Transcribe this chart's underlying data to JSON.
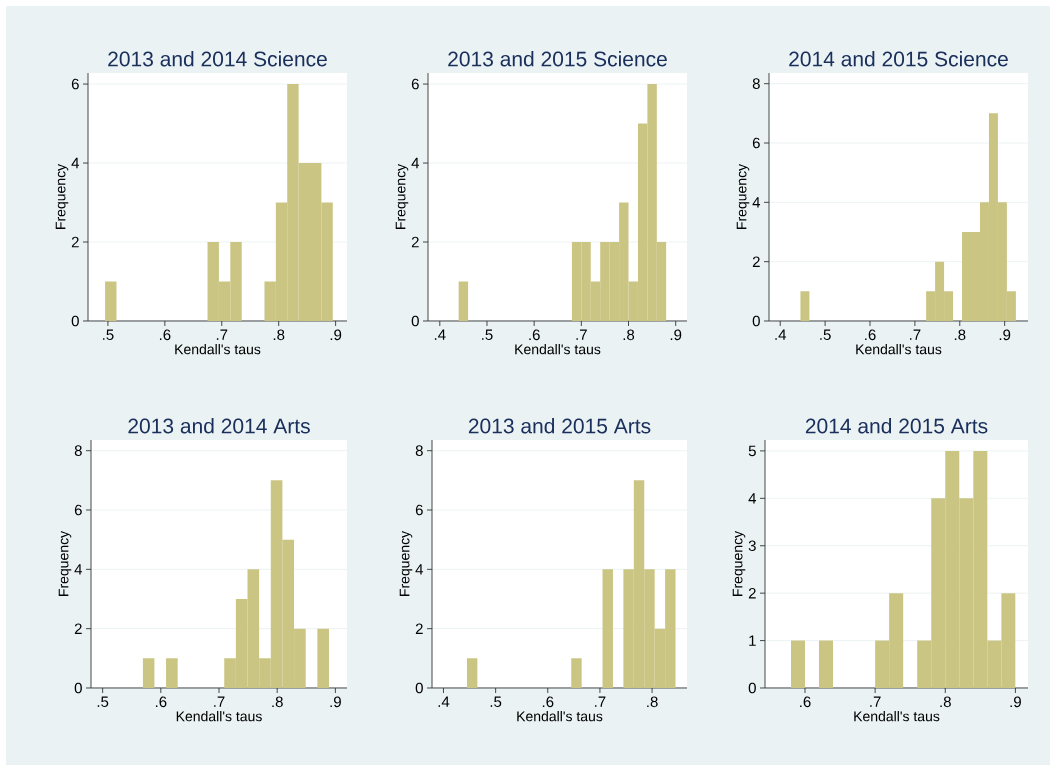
{
  "chart_data": [
    {
      "type": "histogram",
      "title": "2013 and 2014 Science",
      "xlabel": "Kendall's taus",
      "ylabel": "Frequency",
      "color": "#cbc583",
      "grid": "y",
      "bins": [
        0.495,
        0.515,
        0.535,
        0.555,
        0.575,
        0.595,
        0.615,
        0.635,
        0.655,
        0.675,
        0.695,
        0.715,
        0.735,
        0.755,
        0.775,
        0.795,
        0.815,
        0.835,
        0.855,
        0.875,
        0.895
      ],
      "values": [
        1,
        0,
        0,
        0,
        0,
        0,
        0,
        0,
        0,
        2,
        1,
        2,
        0,
        0,
        1,
        3,
        6,
        4,
        4,
        3
      ],
      "xlim": [
        0.465,
        0.92
      ],
      "ylim": [
        0,
        6.28
      ],
      "xticks": [
        {
          "value": 0.5,
          "label": ".5"
        },
        {
          "value": 0.6,
          "label": ".6"
        },
        {
          "value": 0.7,
          "label": ".7"
        },
        {
          "value": 0.8,
          "label": ".8"
        },
        {
          "value": 0.9,
          "label": ".9"
        }
      ],
      "yticks": [
        0,
        2,
        4,
        6
      ]
    },
    {
      "type": "histogram",
      "title": "2013 and 2015 Science",
      "xlabel": "Kendall's taus",
      "ylabel": "Frequency",
      "color": "#cbc583",
      "grid": "y",
      "bins": [
        0.44,
        0.46,
        0.48,
        0.5,
        0.52,
        0.54,
        0.56,
        0.58,
        0.6,
        0.62,
        0.64,
        0.66,
        0.68,
        0.7,
        0.72,
        0.74,
        0.76,
        0.78,
        0.8,
        0.82,
        0.84,
        0.86,
        0.88
      ],
      "values": [
        1,
        0,
        0,
        0,
        0,
        0,
        0,
        0,
        0,
        0,
        0,
        0,
        2,
        2,
        1,
        2,
        2,
        3,
        1,
        5,
        6,
        2
      ],
      "xlim": [
        0.375,
        0.924
      ],
      "ylim": [
        0,
        6.28
      ],
      "xticks": [
        {
          "value": 0.4,
          "label": ".4"
        },
        {
          "value": 0.5,
          "label": ".5"
        },
        {
          "value": 0.6,
          "label": ".6"
        },
        {
          "value": 0.7,
          "label": ".7"
        },
        {
          "value": 0.8,
          "label": ".8"
        },
        {
          "value": 0.9,
          "label": ".9"
        }
      ],
      "yticks": [
        0,
        2,
        4,
        6
      ]
    },
    {
      "type": "histogram",
      "title": "2014 and 2015 Science",
      "xlabel": "Kendall's taus",
      "ylabel": "Frequency",
      "color": "#cbc583",
      "grid": "y",
      "bins": [
        0.445,
        0.465,
        0.485,
        0.505,
        0.525,
        0.545,
        0.565,
        0.585,
        0.605,
        0.625,
        0.645,
        0.665,
        0.685,
        0.705,
        0.725,
        0.745,
        0.765,
        0.785,
        0.805,
        0.825,
        0.845,
        0.865,
        0.885,
        0.905,
        0.925
      ],
      "values": [
        1,
        0,
        0,
        0,
        0,
        0,
        0,
        0,
        0,
        0,
        0,
        0,
        0,
        0,
        1,
        2,
        1,
        0,
        3,
        3,
        4,
        7,
        4,
        1
      ],
      "xlim": [
        0.375,
        0.952
      ],
      "ylim": [
        0,
        8.36
      ],
      "xticks": [
        {
          "value": 0.4,
          "label": ".4"
        },
        {
          "value": 0.5,
          "label": ".5"
        },
        {
          "value": 0.6,
          "label": ".6"
        },
        {
          "value": 0.7,
          "label": ".7"
        },
        {
          "value": 0.8,
          "label": ".8"
        },
        {
          "value": 0.9,
          "label": ".9"
        }
      ],
      "yticks": [
        0,
        2,
        4,
        6,
        8
      ]
    },
    {
      "type": "histogram",
      "title": "2013 and 2014 Arts",
      "xlabel": "Kendall's taus",
      "ylabel": "Frequency",
      "color": "#cbc583",
      "grid": "y",
      "bins": [
        0.569,
        0.589,
        0.609,
        0.629,
        0.649,
        0.669,
        0.689,
        0.709,
        0.729,
        0.749,
        0.769,
        0.789,
        0.809,
        0.829,
        0.849,
        0.869,
        0.889
      ],
      "values": [
        1,
        0,
        1,
        0,
        0,
        0,
        0,
        1,
        3,
        4,
        1,
        7,
        5,
        2,
        0,
        2
      ],
      "xlim": [
        0.48,
        0.92
      ],
      "ylim": [
        0,
        8.36
      ],
      "xticks": [
        {
          "value": 0.5,
          "label": ".5"
        },
        {
          "value": 0.6,
          "label": ".6"
        },
        {
          "value": 0.7,
          "label": ".7"
        },
        {
          "value": 0.8,
          "label": ".8"
        },
        {
          "value": 0.9,
          "label": ".9"
        }
      ],
      "yticks": [
        0,
        2,
        4,
        6,
        8
      ]
    },
    {
      "type": "histogram",
      "title": "2013 and 2015 Arts",
      "xlabel": "Kendall's taus",
      "ylabel": "Frequency",
      "color": "#cbc583",
      "grid": "y",
      "bins": [
        0.445,
        0.465,
        0.485,
        0.505,
        0.525,
        0.545,
        0.565,
        0.585,
        0.605,
        0.625,
        0.645,
        0.665,
        0.685,
        0.705,
        0.725,
        0.745,
        0.765,
        0.785,
        0.805,
        0.825,
        0.845
      ],
      "values": [
        1,
        0,
        0,
        0,
        0,
        0,
        0,
        0,
        0,
        0,
        1,
        0,
        0,
        4,
        0,
        4,
        7,
        4,
        2,
        4
      ],
      "xlim": [
        0.378,
        0.867
      ],
      "ylim": [
        0,
        8.36
      ],
      "xticks": [
        {
          "value": 0.4,
          "label": ".4"
        },
        {
          "value": 0.5,
          "label": ".5"
        },
        {
          "value": 0.6,
          "label": ".6"
        },
        {
          "value": 0.7,
          "label": ".7"
        },
        {
          "value": 0.8,
          "label": ".8"
        }
      ],
      "yticks": [
        0,
        2,
        4,
        6,
        8
      ]
    },
    {
      "type": "histogram",
      "title": "2014 and 2015 Arts",
      "xlabel": "Kendall's taus",
      "ylabel": "Frequency",
      "color": "#cbc583",
      "grid": "y",
      "bins": [
        0.58,
        0.6,
        0.62,
        0.64,
        0.66,
        0.68,
        0.7,
        0.72,
        0.74,
        0.76,
        0.78,
        0.8,
        0.82,
        0.84,
        0.86,
        0.88,
        0.9
      ],
      "values": [
        1,
        0,
        1,
        0,
        0,
        0,
        1,
        2,
        0,
        1,
        4,
        5,
        4,
        5,
        1,
        2
      ],
      "xlim": [
        0.543,
        0.918
      ],
      "ylim": [
        0,
        5.23
      ],
      "xticks": [
        {
          "value": 0.6,
          "label": ".6"
        },
        {
          "value": 0.7,
          "label": ".7"
        },
        {
          "value": 0.8,
          "label": ".8"
        },
        {
          "value": 0.9,
          "label": ".9"
        }
      ],
      "yticks": [
        0,
        1,
        2,
        3,
        4,
        5
      ]
    }
  ]
}
